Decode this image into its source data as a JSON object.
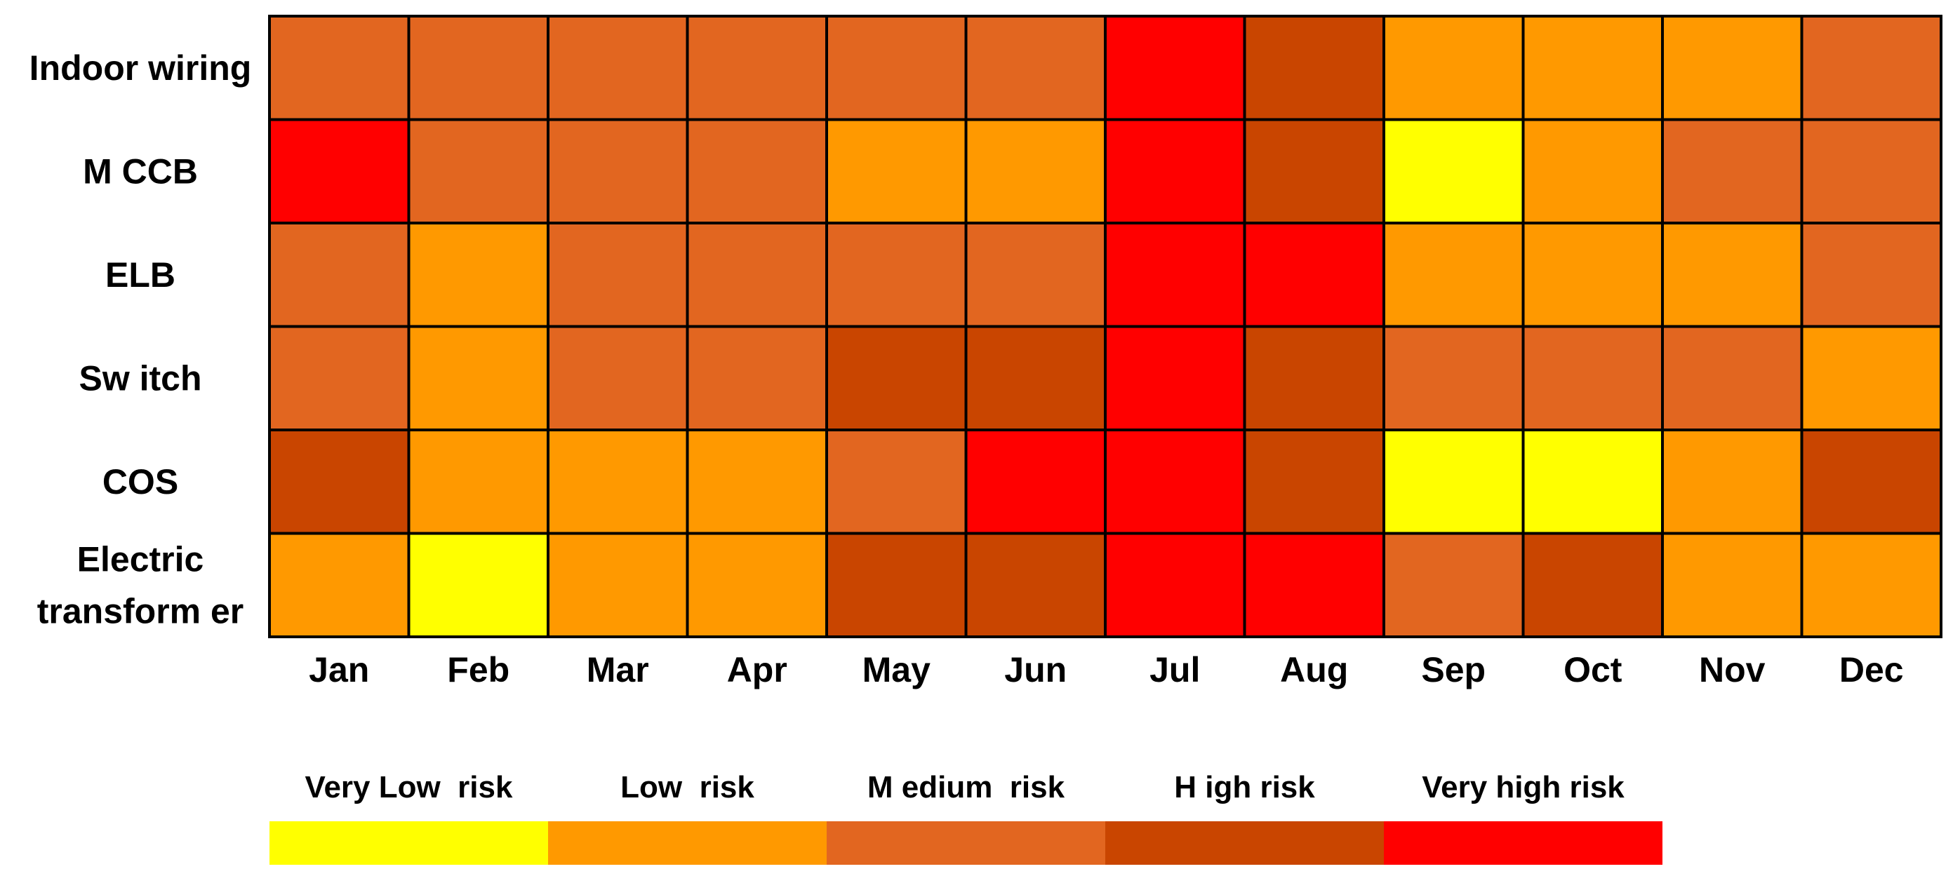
{
  "chart_data": {
    "type": "heatmap",
    "title": "",
    "xlabel": "",
    "ylabel": "",
    "columns": [
      "Jan",
      "Feb",
      "Mar",
      "Apr",
      "May",
      "Jun",
      "Jul",
      "Aug",
      "Sep",
      "Oct",
      "Nov",
      "Dec"
    ],
    "rows": [
      {
        "label": [
          "Indoor wiring"
        ],
        "values": [
          3,
          3,
          3,
          3,
          3,
          3,
          5,
          4,
          2,
          2,
          2,
          3
        ]
      },
      {
        "label": [
          "M CCB"
        ],
        "values": [
          5,
          3,
          3,
          3,
          2,
          2,
          5,
          4,
          1,
          2,
          3,
          3
        ]
      },
      {
        "label": [
          "ELB"
        ],
        "values": [
          3,
          2,
          3,
          3,
          3,
          3,
          5,
          5,
          2,
          2,
          2,
          3
        ]
      },
      {
        "label": [
          "Sw itch"
        ],
        "values": [
          3,
          2,
          3,
          3,
          4,
          4,
          5,
          4,
          3,
          3,
          3,
          2
        ]
      },
      {
        "label": [
          "COS"
        ],
        "values": [
          4,
          2,
          2,
          2,
          3,
          5,
          5,
          4,
          1,
          1,
          2,
          4
        ]
      },
      {
        "label": [
          "Electric",
          "transform er"
        ],
        "values": [
          2,
          1,
          2,
          2,
          4,
          4,
          5,
          5,
          3,
          4,
          2,
          2
        ]
      }
    ],
    "legend": {
      "placement": "bottom",
      "levels": [
        {
          "value": 1,
          "label": "Very Low  risk",
          "color": "#FFFF00"
        },
        {
          "value": 2,
          "label": "Low  risk",
          "color": "#FF9900"
        },
        {
          "value": 3,
          "label": "M edium  risk",
          "color": "#E26620"
        },
        {
          "value": 4,
          "label": "H igh risk",
          "color": "#C94500"
        },
        {
          "value": 5,
          "label": "Very high risk",
          "color": "#FF0000"
        }
      ]
    },
    "grid": true
  }
}
